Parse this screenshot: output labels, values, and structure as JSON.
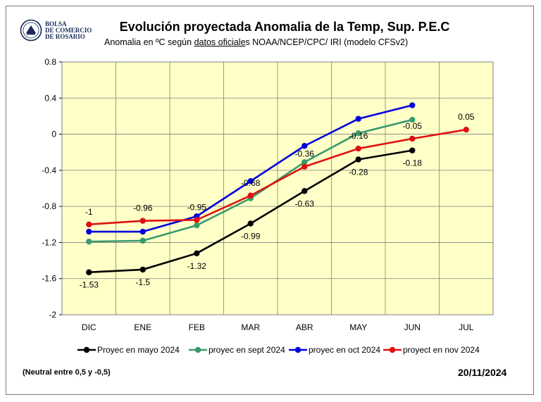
{
  "logo": {
    "line1": "BOLSA",
    "line2": "DE COMERCIO",
    "line3": "DE ROSARIO"
  },
  "header": {
    "title": "Evolución proyectada Anomalia de la Temp, Sup.  P.E.C",
    "subtitle_prefix": "Anomalia en ºC según ",
    "subtitle_link": "datos oficiale",
    "subtitle_suffix": "s NOAA/NCEP/CPC/ IRI (modelo CFSv2)"
  },
  "footer": {
    "note": "(Neutral entre 0,5 y -0,5)",
    "date": "20/11/2024"
  },
  "colors": {
    "plot_bg": "#ffffc8",
    "grid": "#808080",
    "mayo": "#000000",
    "sept": "#3a9a6e",
    "oct": "#0000dd",
    "nov": "#e01010"
  },
  "chart_data": {
    "type": "line",
    "title": "Evolución proyectada Anomalia de la Temp, Sup.  P.E.C",
    "subtitle": "Anomalia en ºC según datos oficiales NOAA/NCEP/CPC/ IRI (modelo CFSv2)",
    "categories": [
      "DIC",
      "ENE",
      "FEB",
      "MAR",
      "ABR",
      "MAY",
      "JUN",
      "JUL"
    ],
    "ylim": [
      -2,
      0.8
    ],
    "yticks": [
      0.8,
      0.4,
      0,
      -0.4,
      -0.8,
      -1.2,
      -1.6,
      -2
    ],
    "ytick_labels": [
      "0.8",
      "0.4",
      "0",
      "-0.4",
      "-0.8",
      "-1.2",
      "-1.6",
      "-2"
    ],
    "grid": true,
    "legend_position": "bottom",
    "series": [
      {
        "key": "mayo",
        "name": "Proyec en mayo 2024",
        "values": [
          -1.53,
          -1.5,
          -1.32,
          -0.99,
          -0.63,
          -0.28,
          -0.18,
          null
        ],
        "labels": [
          "-1.53",
          "-1.5",
          "-1.32",
          "-0.99",
          "-0.63",
          "-0.28",
          "-0.18",
          null
        ],
        "label_pos": "below"
      },
      {
        "key": "sept",
        "name": "proyec en sept 2024",
        "values": [
          -1.19,
          -1.18,
          -1.01,
          -0.71,
          -0.31,
          0.01,
          0.16,
          null
        ],
        "labels": null
      },
      {
        "key": "oct",
        "name": "proyec en oct 2024",
        "values": [
          -1.08,
          -1.08,
          -0.91,
          -0.52,
          -0.13,
          0.17,
          0.32,
          null
        ],
        "labels": null
      },
      {
        "key": "nov",
        "name": "proyect en nov 2024",
        "values": [
          -1.0,
          -0.96,
          -0.95,
          -0.68,
          -0.36,
          -0.16,
          -0.05,
          0.05
        ],
        "labels": [
          "-1",
          "-0.96",
          "-0.95",
          "-0.68",
          "-0.36",
          "-0.16",
          "-0.05",
          "0.05"
        ],
        "label_pos": "above"
      }
    ]
  }
}
